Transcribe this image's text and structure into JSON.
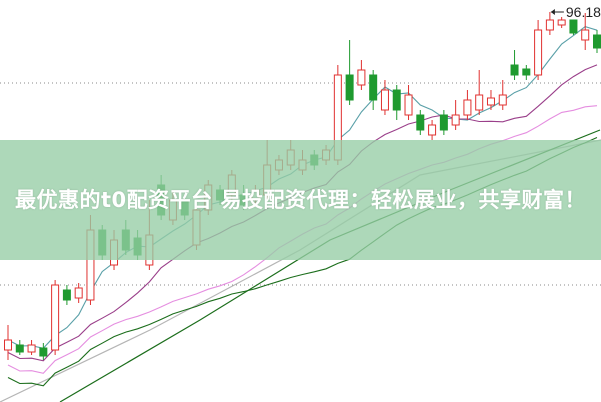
{
  "chart_data": {
    "type": "candlestick",
    "title": "",
    "xlabel": "",
    "ylabel": "",
    "ylim": [
      18.2,
      98.6
    ],
    "grid": true,
    "colors": {
      "up": "#e0302f",
      "down": "#1f9a2f",
      "ma5": "#5aa0a8",
      "ma10": "#9a3f8a",
      "ma20": "#e58ee0",
      "ma30": "#1c6e1c",
      "gray_ma": "#b5b5b5"
    },
    "high_annotation": "96.18",
    "candles": [
      [
        28.6,
        33.6,
        26.6,
        30.6
      ],
      [
        29.6,
        30.6,
        27.6,
        28.2
      ],
      [
        28.2,
        30.6,
        27.6,
        29.6
      ],
      [
        29.0,
        30.0,
        26.6,
        27.4
      ],
      [
        28.6,
        42.6,
        27.6,
        41.6
      ],
      [
        40.6,
        41.6,
        37.6,
        38.6
      ],
      [
        39.0,
        42.0,
        38.0,
        41.0
      ],
      [
        38.6,
        55.6,
        37.6,
        52.6
      ],
      [
        52.6,
        53.6,
        46.6,
        47.6
      ],
      [
        45.6,
        52.6,
        44.6,
        50.6
      ],
      [
        52.6,
        54.6,
        47.6,
        48.6
      ],
      [
        51.0,
        52.6,
        46.6,
        47.6
      ],
      [
        45.6,
        58.6,
        44.6,
        51.6
      ],
      [
        61.6,
        63.6,
        54.6,
        55.6
      ],
      [
        54.6,
        60.6,
        53.6,
        58.6
      ],
      [
        58.6,
        59.6,
        54.6,
        55.6
      ],
      [
        49.6,
        57.6,
        48.6,
        56.6
      ],
      [
        56.6,
        62.6,
        55.6,
        61.6
      ],
      [
        60.6,
        61.6,
        57.6,
        58.6
      ],
      [
        59.6,
        64.6,
        58.6,
        63.6
      ],
      [
        59.6,
        61.6,
        56.6,
        57.6
      ],
      [
        58.6,
        61.6,
        57.6,
        60.6
      ],
      [
        59.6,
        70.6,
        58.6,
        65.6
      ],
      [
        64.6,
        67.6,
        63.6,
        66.6
      ],
      [
        65.6,
        70.6,
        64.6,
        68.6
      ],
      [
        64.6,
        68.6,
        63.6,
        66.6
      ],
      [
        67.6,
        68.6,
        64.6,
        65.6
      ],
      [
        66.6,
        69.6,
        65.6,
        68.6
      ],
      [
        66.6,
        85.6,
        65.6,
        83.6
      ],
      [
        83.6,
        90.6,
        77.6,
        78.6
      ],
      [
        81.6,
        86.6,
        80.6,
        84.6
      ],
      [
        83.6,
        84.6,
        76.6,
        78.6
      ],
      [
        76.6,
        82.6,
        75.6,
        80.6
      ],
      [
        80.6,
        81.6,
        74.6,
        76.6
      ],
      [
        75.6,
        81.6,
        74.6,
        79.6
      ],
      [
        75.6,
        76.6,
        71.6,
        72.6
      ],
      [
        71.6,
        74.6,
        70.6,
        73.6
      ],
      [
        75.6,
        76.6,
        71.6,
        72.6
      ],
      [
        73.6,
        78.6,
        72.6,
        75.6
      ],
      [
        75.6,
        80.6,
        74.6,
        78.6
      ],
      [
        76.6,
        84.6,
        75.6,
        79.6
      ],
      [
        77.6,
        80.6,
        76.6,
        79.0
      ],
      [
        77.6,
        82.6,
        76.6,
        79.6
      ],
      [
        85.6,
        88.6,
        82.6,
        83.6
      ],
      [
        84.8,
        85.6,
        82.6,
        83.6
      ],
      [
        83.6,
        94.6,
        82.6,
        92.6
      ],
      [
        92.6,
        96.2,
        91.6,
        94.6
      ],
      [
        93.6,
        95.2,
        93.0,
        94.6
      ],
      [
        94.6,
        94.6,
        91.6,
        92.0
      ],
      [
        90.6,
        96.0,
        88.6,
        92.6
      ],
      [
        91.6,
        92.6,
        88.0,
        89.0
      ]
    ],
    "moving_averages": [
      5,
      10,
      20,
      30
    ]
  },
  "banner": {
    "title": "最优惠的t0配资平台 易投配资代理：轻松展业，共享财富！"
  }
}
